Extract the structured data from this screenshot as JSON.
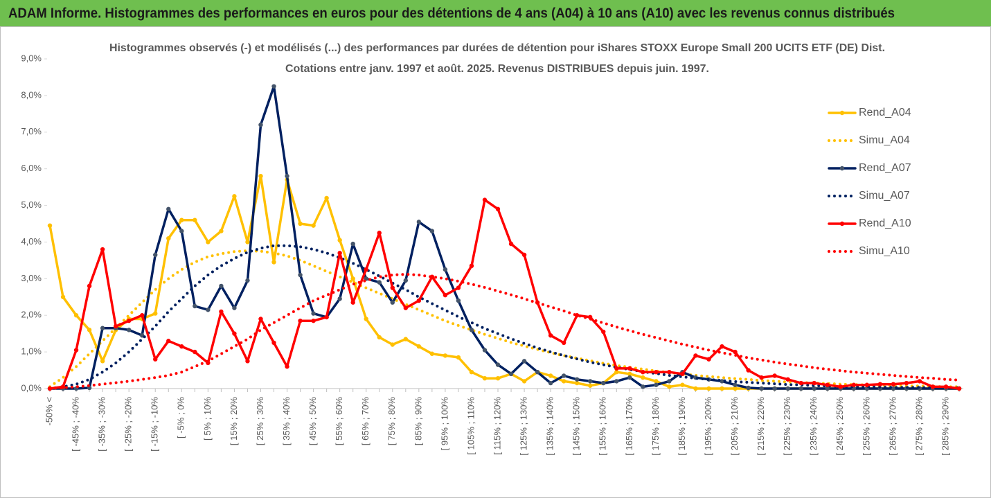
{
  "chart_data": {
    "type": "line",
    "title": "ADAM Informe. Histogrammes des performances en euros pour des détentions de 4 ans (A04) à 10 ans (A10) avec les revenus connus distribués",
    "subtitle": [
      "Histogrammes observés (-) et modélisés (...) des performances par durées de détention pour iShares STOXX Europe Small 200 UCITS ETF (DE) Dist.",
      "Cotations entre janv. 1997 et août. 2025. Revenus DISTRIBUES depuis juin. 1997."
    ],
    "categories": [
      "-50% <",
      null,
      "[ -45% ; -40%",
      null,
      "[ -35% ; -30%",
      null,
      "[ -25% ; -20%",
      null,
      "[ -15% ; -10%",
      null,
      "[ -5% ; 0%",
      null,
      "[ 5% ; 10%",
      null,
      "[ 15% ; 20%",
      null,
      "[ 25% ; 30%",
      null,
      "[ 35% ; 40%",
      null,
      "[ 45% ; 50%",
      null,
      "[ 55% ; 60%",
      null,
      "[ 65% ; 70%",
      null,
      "[ 75% ; 80%",
      null,
      "[ 85% ; 90%",
      null,
      "[ 95% ; 100%",
      null,
      "[ 105% ; 110%",
      null,
      "[ 115% ; 120%",
      null,
      "[ 125% ; 130%",
      null,
      "[ 135% ; 140%",
      null,
      "[ 145% ; 150%",
      null,
      "[ 155% ; 160%",
      null,
      "[ 165% ; 170%",
      null,
      "[ 175% ; 180%",
      null,
      "[ 185% ; 190%",
      null,
      "[ 195% ; 200%",
      null,
      "[ 205% ; 210%",
      null,
      "[ 215% ; 220%",
      null,
      "[ 225% ; 230%",
      null,
      "[ 235% ; 240%",
      null,
      "[ 245% ; 250%",
      null,
      "[ 255% ; 260%",
      null,
      "[ 265% ; 270%",
      null,
      "[ 275% ; 280%",
      null,
      "[ 285% ; 290%",
      null
    ],
    "series": [
      {
        "name": "Rend_A04",
        "color": "#ffc000",
        "line_style": "solid",
        "markers": true,
        "values": [
          4.45,
          2.5,
          2.0,
          1.6,
          0.75,
          1.6,
          1.9,
          1.9,
          2.05,
          4.1,
          4.6,
          4.6,
          4.0,
          4.3,
          5.25,
          4.0,
          5.8,
          3.45,
          5.7,
          4.5,
          4.45,
          5.2,
          4.05,
          3.0,
          1.9,
          1.4,
          1.2,
          1.35,
          1.15,
          0.95,
          0.9,
          0.85,
          0.45,
          0.28,
          0.28,
          0.4,
          0.2,
          0.45,
          0.35,
          0.2,
          0.15,
          0.08,
          0.15,
          0.45,
          0.4,
          0.3,
          0.2,
          0.05,
          0.1,
          0,
          0,
          0,
          0,
          0,
          0,
          0,
          0,
          0,
          0,
          0,
          0,
          0,
          0,
          0,
          0,
          0,
          0,
          0,
          0,
          0
        ]
      },
      {
        "name": "Simu_A04",
        "color": "#ffc000",
        "line_style": "dotted",
        "markers": false,
        "values": [
          0.05,
          0.3,
          0.6,
          0.95,
          1.3,
          1.65,
          2.0,
          2.35,
          2.7,
          3.0,
          3.25,
          3.45,
          3.6,
          3.68,
          3.74,
          3.76,
          3.75,
          3.7,
          3.62,
          3.5,
          3.35,
          3.2,
          3.05,
          2.9,
          2.75,
          2.6,
          2.45,
          2.3,
          2.15,
          2.0,
          1.85,
          1.72,
          1.6,
          1.48,
          1.37,
          1.26,
          1.16,
          1.07,
          0.98,
          0.9,
          0.83,
          0.76,
          0.69,
          0.63,
          0.58,
          0.53,
          0.48,
          0.44,
          0.4,
          0.36,
          0.33,
          0.3,
          0.27,
          0.25,
          0.22,
          0.2,
          0.18,
          0.17,
          0.15,
          0.14,
          0.12,
          0.11,
          0.1,
          0.09,
          0.08,
          0.07,
          0.07,
          0.06,
          0.05,
          0.05
        ]
      },
      {
        "name": "Rend_A07",
        "color": "#002060",
        "line_style": "solid",
        "markers": true,
        "values": [
          0,
          0,
          0,
          0.02,
          1.65,
          1.65,
          1.6,
          1.45,
          3.65,
          4.9,
          4.3,
          2.25,
          2.15,
          2.8,
          2.2,
          2.95,
          7.2,
          8.25,
          5.8,
          3.1,
          2.05,
          1.95,
          2.45,
          3.95,
          3.0,
          2.9,
          2.35,
          2.95,
          4.55,
          4.3,
          3.25,
          2.4,
          1.6,
          1.05,
          0.65,
          0.4,
          0.75,
          0.45,
          0.15,
          0.35,
          0.25,
          0.2,
          0.15,
          0.2,
          0.3,
          0.05,
          0.1,
          0.2,
          0.45,
          0.3,
          0.25,
          0.2,
          0.1,
          0.02,
          0,
          0,
          0,
          0,
          0,
          0,
          0,
          0,
          0,
          0,
          0,
          0,
          0,
          0,
          0,
          0
        ]
      },
      {
        "name": "Simu_A07",
        "color": "#002060",
        "line_style": "dotted",
        "markers": false,
        "values": [
          0,
          0.05,
          0.12,
          0.25,
          0.45,
          0.7,
          1.0,
          1.35,
          1.7,
          2.1,
          2.45,
          2.8,
          3.1,
          3.35,
          3.55,
          3.72,
          3.83,
          3.9,
          3.9,
          3.87,
          3.8,
          3.7,
          3.57,
          3.42,
          3.25,
          3.07,
          2.88,
          2.7,
          2.5,
          2.32,
          2.14,
          1.96,
          1.8,
          1.64,
          1.5,
          1.36,
          1.23,
          1.11,
          1.0,
          0.9,
          0.81,
          0.72,
          0.65,
          0.58,
          0.52,
          0.46,
          0.41,
          0.36,
          0.32,
          0.28,
          0.25,
          0.22,
          0.19,
          0.17,
          0.15,
          0.13,
          0.11,
          0.1,
          0.08,
          0.07,
          0.06,
          0.05,
          0.05,
          0.04,
          0.03,
          0.03,
          0.03,
          0.02,
          0.02,
          0.02
        ]
      },
      {
        "name": "Rend_A10",
        "color": "#ff0000",
        "line_style": "solid",
        "markers": true,
        "values": [
          0,
          0.05,
          1.05,
          2.8,
          3.8,
          1.7,
          1.85,
          2.0,
          0.8,
          1.3,
          1.15,
          1.0,
          0.7,
          2.1,
          1.5,
          0.75,
          1.9,
          1.25,
          0.6,
          1.85,
          1.85,
          1.95,
          3.7,
          2.35,
          3.25,
          4.25,
          2.75,
          2.2,
          2.4,
          3.05,
          2.55,
          2.75,
          3.35,
          5.15,
          4.9,
          3.95,
          3.65,
          2.35,
          1.45,
          1.25,
          2.0,
          1.95,
          1.55,
          0.55,
          0.55,
          0.45,
          0.45,
          0.45,
          0.4,
          0.9,
          0.8,
          1.15,
          1.0,
          0.5,
          0.3,
          0.35,
          0.25,
          0.15,
          0.15,
          0.1,
          0.05,
          0.1,
          0.1,
          0.12,
          0.12,
          0.15,
          0.2,
          0.05,
          0.05,
          0
        ]
      },
      {
        "name": "Simu_A10",
        "color": "#ff0000",
        "line_style": "dotted",
        "markers": false,
        "values": [
          0,
          0.02,
          0.05,
          0.08,
          0.12,
          0.16,
          0.2,
          0.25,
          0.3,
          0.36,
          0.45,
          0.6,
          0.75,
          0.95,
          1.15,
          1.35,
          1.6,
          1.8,
          2.0,
          2.2,
          2.4,
          2.55,
          2.7,
          2.85,
          2.95,
          3.05,
          3.1,
          3.12,
          3.1,
          3.05,
          3.0,
          2.93,
          2.85,
          2.76,
          2.66,
          2.56,
          2.45,
          2.34,
          2.23,
          2.12,
          2.0,
          1.9,
          1.79,
          1.68,
          1.58,
          1.48,
          1.39,
          1.3,
          1.21,
          1.13,
          1.05,
          0.98,
          0.91,
          0.84,
          0.78,
          0.72,
          0.67,
          0.62,
          0.57,
          0.53,
          0.49,
          0.45,
          0.42,
          0.39,
          0.36,
          0.33,
          0.3,
          0.28,
          0.25,
          0.23
        ]
      }
    ],
    "ylim": [
      0,
      9
    ],
    "yticks": [
      {
        "value": 0,
        "label": "0,0%"
      },
      {
        "value": 1,
        "label": "1,0%"
      },
      {
        "value": 2,
        "label": "2,0%"
      },
      {
        "value": 3,
        "label": "3,0%"
      },
      {
        "value": 4,
        "label": "4,0%"
      },
      {
        "value": 5,
        "label": "5,0%"
      },
      {
        "value": 6,
        "label": "6,0%"
      },
      {
        "value": 7,
        "label": "7,0%"
      },
      {
        "value": 8,
        "label": "8,0%"
      },
      {
        "value": 9,
        "label": "9,0%"
      }
    ],
    "grid": false,
    "legend": "right"
  }
}
